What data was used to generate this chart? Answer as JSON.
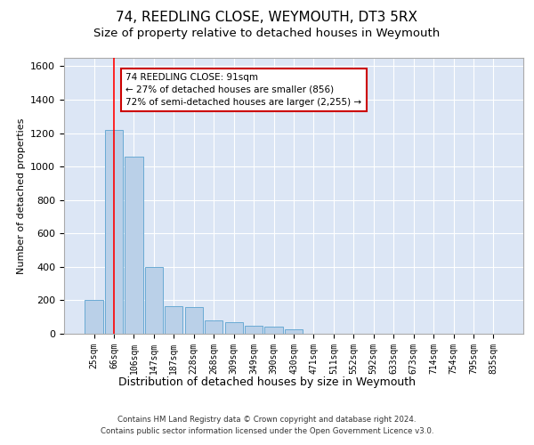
{
  "title": "74, REEDLING CLOSE, WEYMOUTH, DT3 5RX",
  "subtitle": "Size of property relative to detached houses in Weymouth",
  "xlabel": "Distribution of detached houses by size in Weymouth",
  "ylabel": "Number of detached properties",
  "bar_labels": [
    "25sqm",
    "66sqm",
    "106sqm",
    "147sqm",
    "187sqm",
    "228sqm",
    "268sqm",
    "309sqm",
    "349sqm",
    "390sqm",
    "430sqm",
    "471sqm",
    "511sqm",
    "552sqm",
    "592sqm",
    "633sqm",
    "673sqm",
    "714sqm",
    "754sqm",
    "795sqm",
    "835sqm"
  ],
  "bar_values": [
    200,
    1220,
    1060,
    400,
    165,
    160,
    80,
    70,
    50,
    45,
    25,
    0,
    0,
    0,
    0,
    0,
    0,
    0,
    0,
    0,
    0
  ],
  "bar_color": "#bad0e8",
  "bar_edgecolor": "#6aaad4",
  "background_color": "#dce6f5",
  "fig_background": "#ffffff",
  "ylim": [
    0,
    1650
  ],
  "yticks": [
    0,
    200,
    400,
    600,
    800,
    1000,
    1200,
    1400,
    1600
  ],
  "red_line_x": 1.0,
  "annotation_text": "74 REEDLING CLOSE: 91sqm\n← 27% of detached houses are smaller (856)\n72% of semi-detached houses are larger (2,255) →",
  "annotation_box_facecolor": "#ffffff",
  "annotation_box_edgecolor": "#cc0000",
  "footnote1": "Contains HM Land Registry data © Crown copyright and database right 2024.",
  "footnote2": "Contains public sector information licensed under the Open Government Licence v3.0.",
  "title_fontsize": 11,
  "subtitle_fontsize": 9.5,
  "xlabel_fontsize": 9,
  "ylabel_fontsize": 8
}
